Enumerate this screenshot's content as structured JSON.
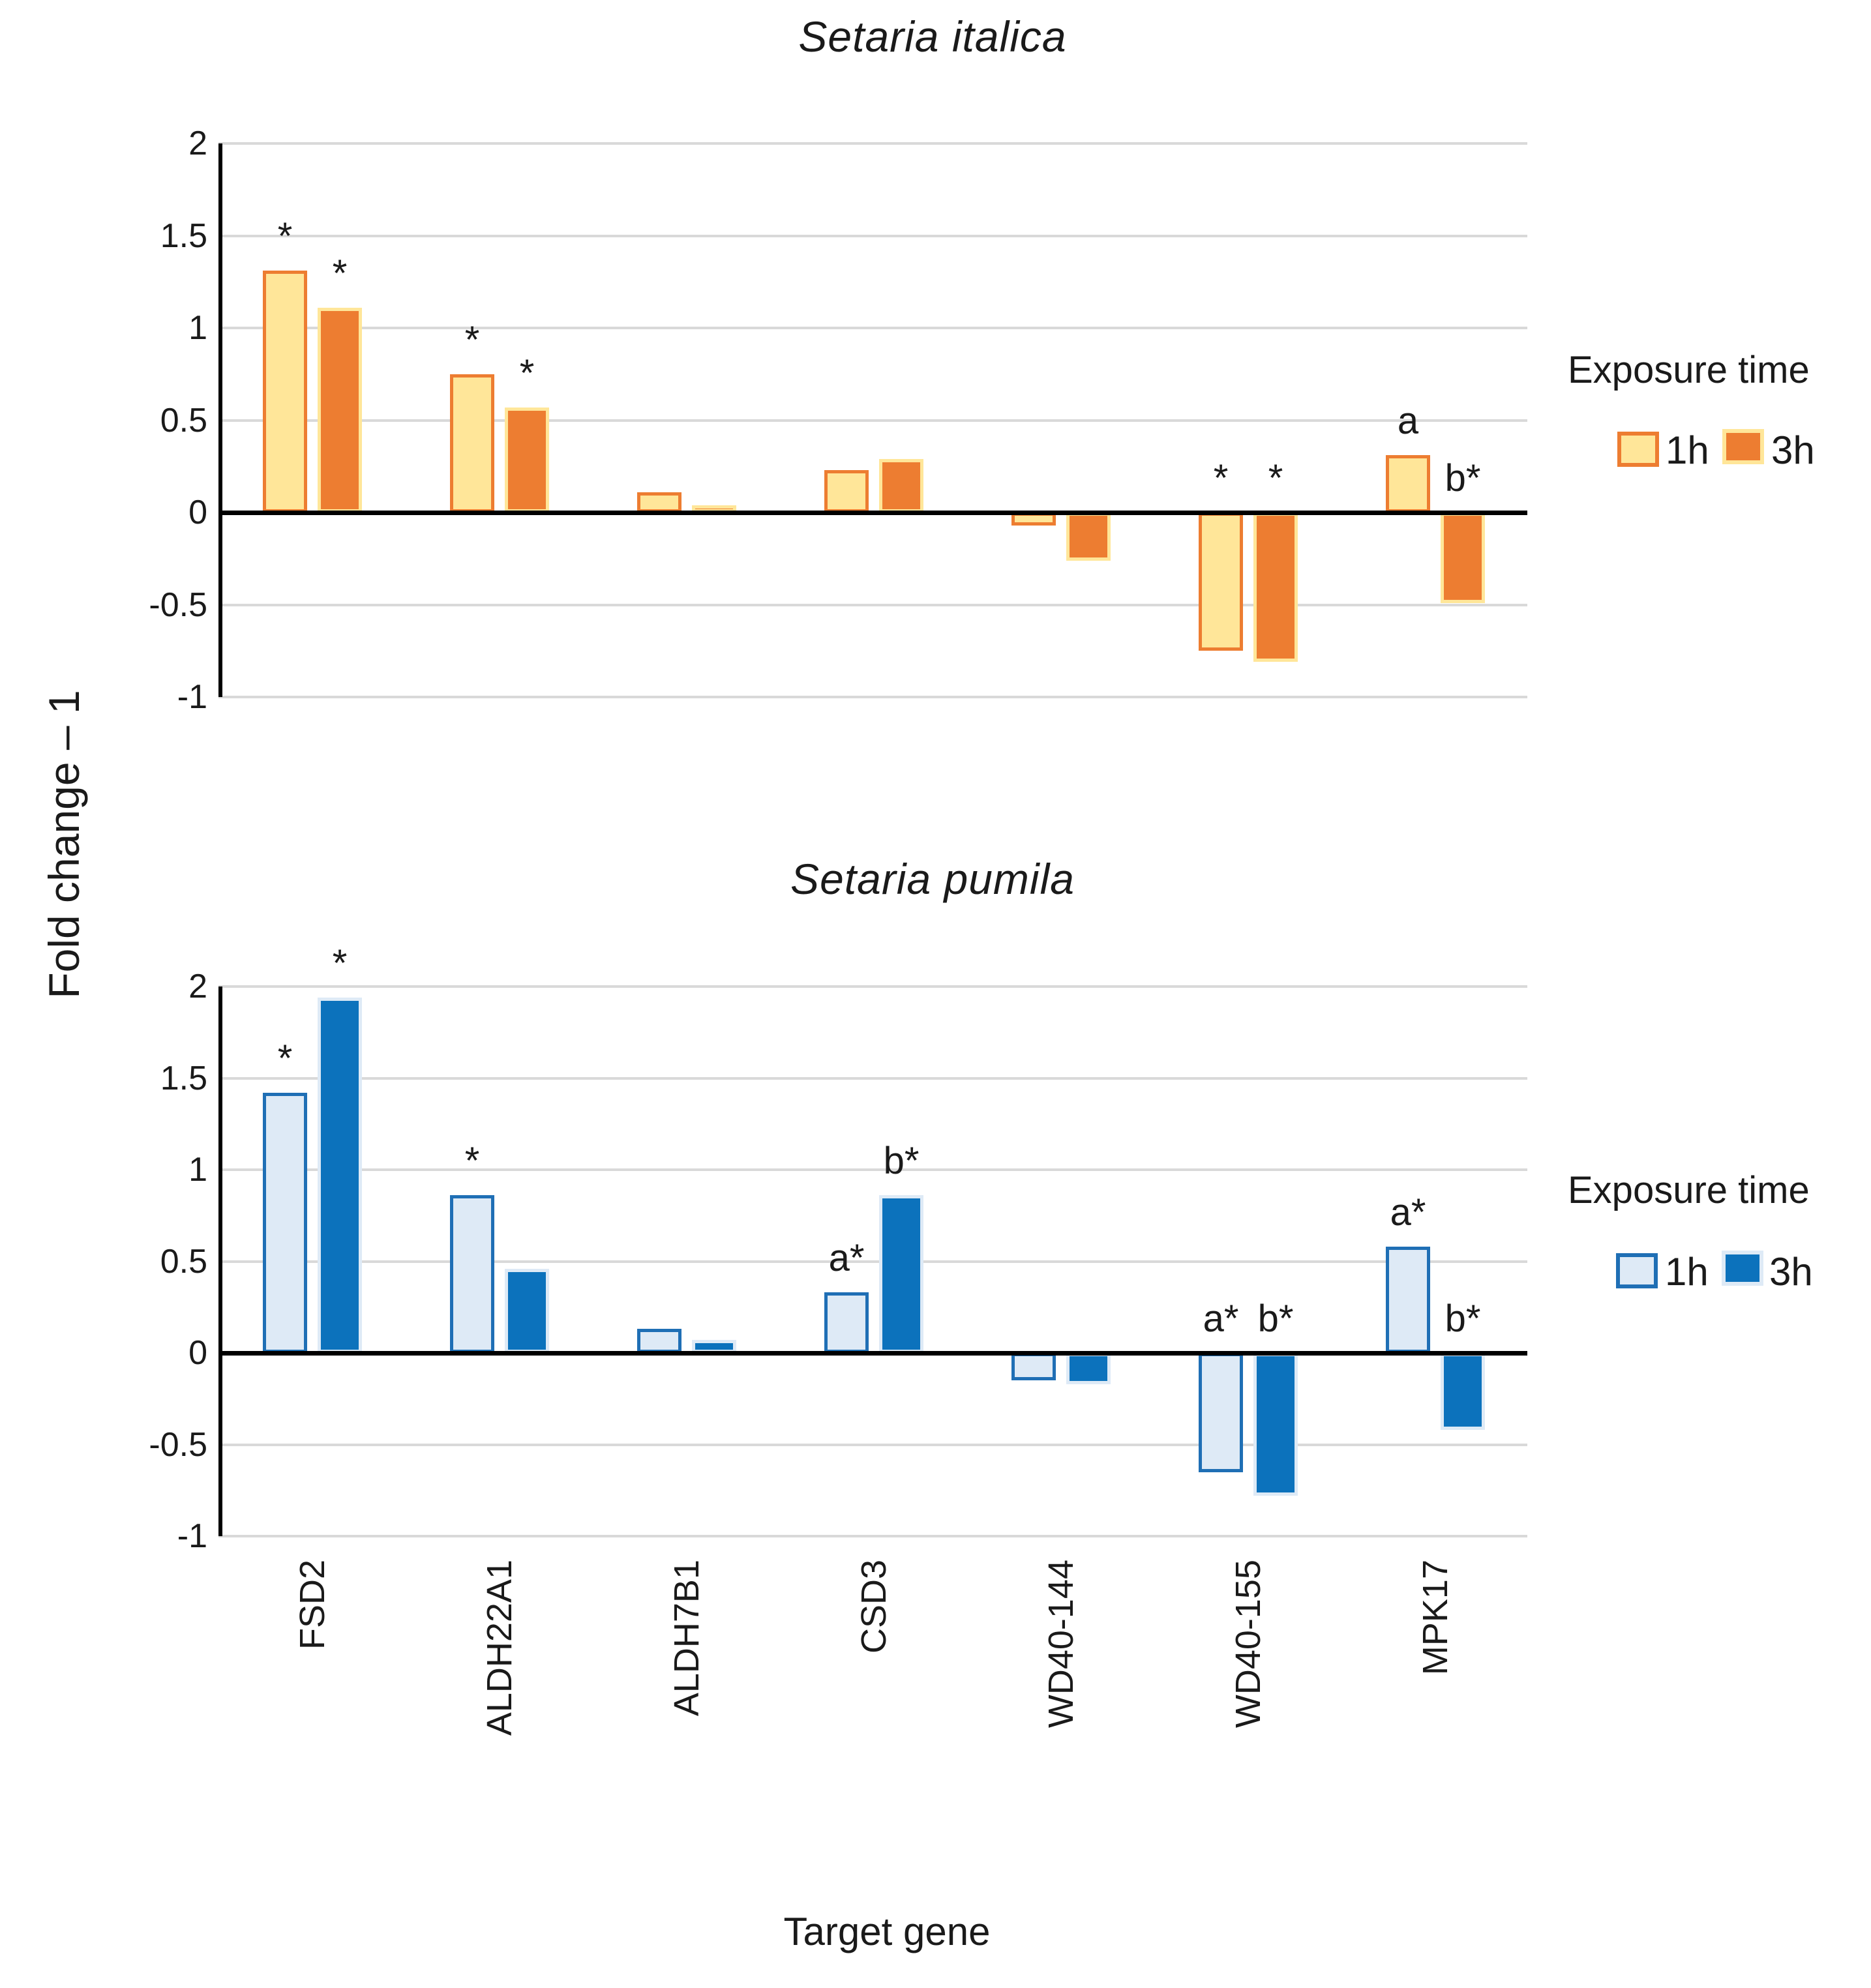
{
  "axis": {
    "y_title": "Fold change – 1",
    "x_title": "Target gene",
    "y_tick_labels": [
      "2",
      "1.5",
      "1",
      "0.5",
      "0",
      "-0.5",
      "-1"
    ],
    "y_ticks": [
      2,
      1.5,
      1,
      0.5,
      0,
      -0.5,
      -1
    ],
    "ylim": [
      -1,
      2
    ]
  },
  "categories": [
    "FSD2",
    "ALDH22A1",
    "ALDH7B1",
    "CSD3",
    "WD40-144",
    "WD40-155",
    "MPK17"
  ],
  "chart_data": [
    {
      "type": "bar",
      "title": "Setaria italica",
      "xlabel": "Target gene",
      "ylabel": "Fold change – 1",
      "ylim": [
        -1,
        2
      ],
      "grid": true,
      "legend_position": "right",
      "legend": {
        "title": "Exposure time",
        "items": [
          "1h",
          "3h"
        ]
      },
      "categories": [
        "FSD2",
        "ALDH22A1",
        "ALDH7B1",
        "CSD3",
        "WD40-144",
        "WD40-155",
        "MPK17"
      ],
      "series": [
        {
          "name": "1h",
          "values": [
            1.31,
            0.75,
            0.11,
            0.23,
            -0.07,
            -0.75,
            0.31
          ],
          "annotations": [
            "*",
            "*",
            "",
            "",
            "",
            "*",
            "a"
          ],
          "fill": "#FFE699",
          "border": "#ED7D31"
        },
        {
          "name": "3h",
          "values": [
            1.11,
            0.57,
            0.04,
            0.29,
            -0.26,
            -0.81,
            -0.49
          ],
          "annotations": [
            "*",
            "*",
            "",
            "",
            "",
            "*",
            "b*"
          ],
          "fill": "#ED7D31",
          "border": "#FFE699"
        }
      ]
    },
    {
      "type": "bar",
      "title": "Setaria pumila",
      "xlabel": "Target gene",
      "ylabel": "Fold change – 1",
      "ylim": [
        -1,
        2
      ],
      "grid": true,
      "legend_position": "right",
      "legend": {
        "title": "Exposure time",
        "items": [
          "1h",
          "3h"
        ]
      },
      "categories": [
        "FSD2",
        "ALDH22A1",
        "ALDH7B1",
        "CSD3",
        "WD40-144",
        "WD40-155",
        "MPK17"
      ],
      "series": [
        {
          "name": "1h",
          "values": [
            1.42,
            0.86,
            0.13,
            0.33,
            -0.15,
            -0.65,
            0.58
          ],
          "annotations": [
            "*",
            "*",
            "",
            "a*",
            "",
            "a*",
            "a*"
          ],
          "fill": "#DEEAF6",
          "border": "#1F6FB5"
        },
        {
          "name": "3h",
          "values": [
            1.94,
            0.46,
            0.07,
            0.86,
            -0.17,
            -0.78,
            -0.42
          ],
          "annotations": [
            "*",
            "",
            "",
            "b*",
            "",
            "b*",
            "b*"
          ],
          "fill": "#0C72BC",
          "border": "#DEEAF6"
        }
      ]
    }
  ],
  "colors": {
    "gridline": "#D9D9D9",
    "axis": "#000000",
    "text": "#1a1a1a",
    "background": "#FFFFFF",
    "italica_1h": "#FFE699",
    "italica_3h": "#ED7D31",
    "pumila_1h": "#DEEAF6",
    "pumila_3h": "#0C72BC"
  }
}
